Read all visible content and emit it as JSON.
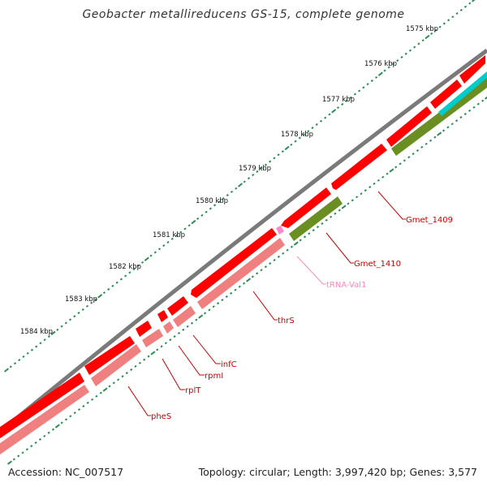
{
  "title": "Geobacter metallireducens GS-15, complete genome",
  "footer": {
    "accession": "Accession: NC_007517",
    "summary": "Topology: circular; Length: 3,997,420 bp; Genes: 3,577"
  },
  "scale_labels": [
    "1575 kbp",
    "1576 kbp",
    "1577 kbp",
    "1578 kbp",
    "1579 kbp",
    "1580 kbp",
    "1581 kbp",
    "1582 kbp",
    "1583 kbp",
    "1584 kbp"
  ],
  "gene_labels": [
    {
      "text": "Gmet_1409",
      "color": "#cc0000"
    },
    {
      "text": "Gmet_1410",
      "color": "#cc0000"
    },
    {
      "text": "tRNA-Val1",
      "color": "#ff88bb"
    },
    {
      "text": "thrS",
      "color": "#cc0000"
    },
    {
      "text": "infC",
      "color": "#cc0000"
    },
    {
      "text": "rpmI",
      "color": "#cc0000"
    },
    {
      "text": "rplT",
      "color": "#cc0000"
    },
    {
      "text": "pheS",
      "color": "#cc0000"
    }
  ],
  "colors": {
    "backbone": "#7a7a7a",
    "cds": "#ff0000",
    "cds_light": "#f08080",
    "rna": "#ff88cc",
    "green_feature": "#6b8e23",
    "cyan_feature": "#00cccc",
    "tick": "#2e8b57",
    "label_line": "#cc0000"
  }
}
